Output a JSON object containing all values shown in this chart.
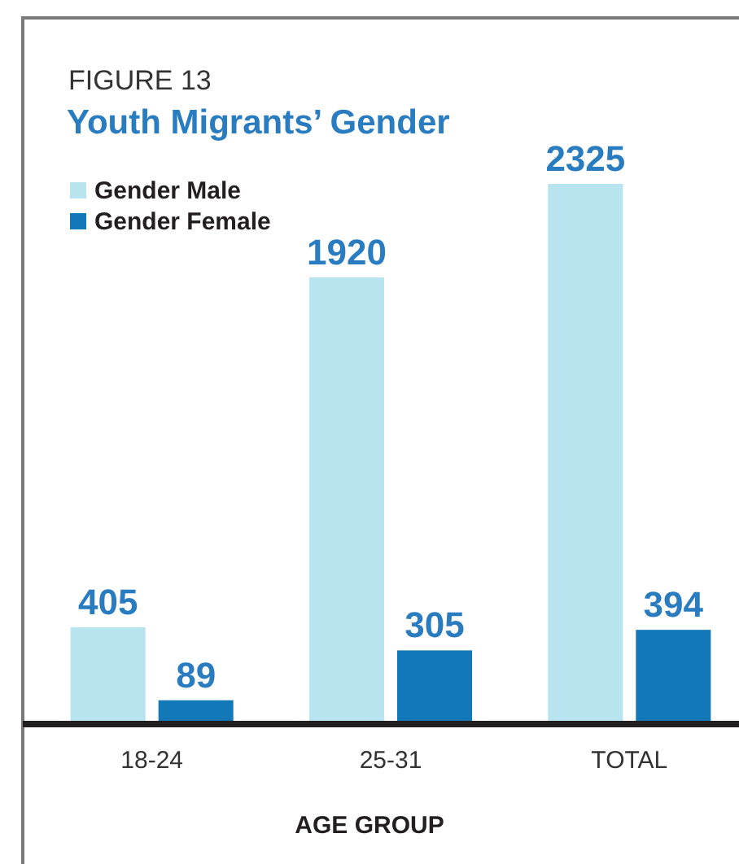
{
  "chart_data": {
    "type": "bar",
    "title": "Youth Migrants’ Gender",
    "annotations": [
      "FIGURE 13"
    ],
    "xlabel": "AGE GROUP",
    "categories": [
      "18-24",
      "25-31",
      "TOTAL"
    ],
    "series": [
      {
        "name": "Gender Male",
        "color": "#b8e4f0",
        "values": [
          405,
          1920,
          2325
        ]
      },
      {
        "name": "Gender Female",
        "color": "#1378b8",
        "values": [
          89,
          305,
          394
        ]
      }
    ],
    "data_labels": true,
    "legend": "top left",
    "tick_labels": "x"
  }
}
